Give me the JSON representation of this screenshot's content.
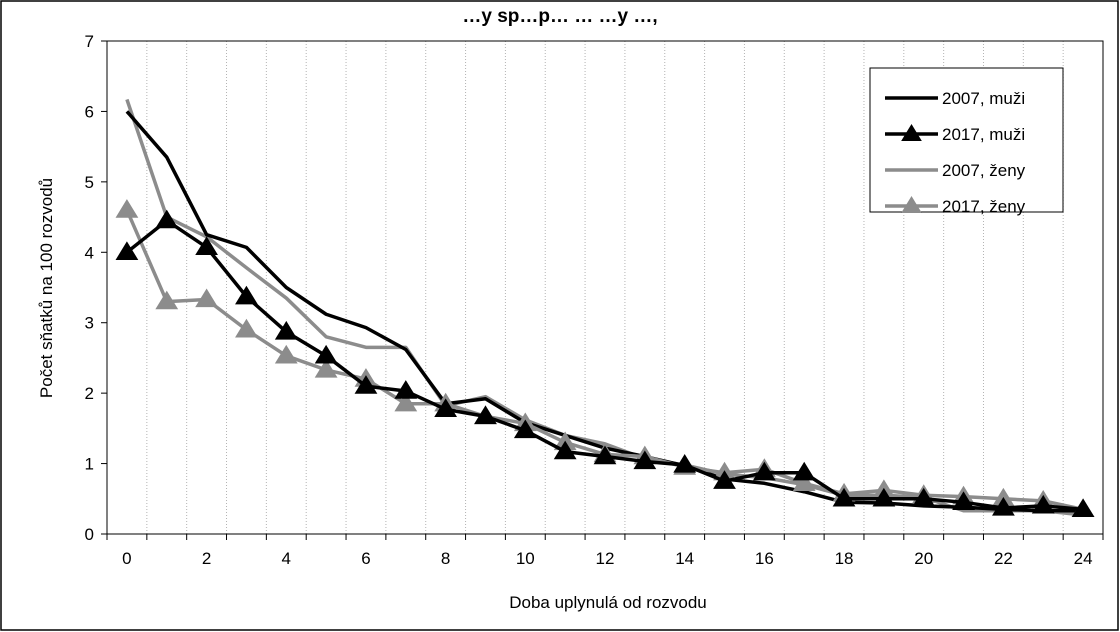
{
  "chart_data": {
    "type": "line",
    "title": "…y sp…p… … …y …,",
    "xlabel": "Doba uplynulá od rozvodu",
    "ylabel": "Počet sňatků na 100 rozvodů",
    "xlim": [
      0,
      24
    ],
    "ylim": [
      0,
      7
    ],
    "x_ticks": [
      "0",
      "2",
      "4",
      "6",
      "8",
      "10",
      "12",
      "14",
      "16",
      "18",
      "20",
      "22",
      "24"
    ],
    "y_ticks": [
      "0",
      "1",
      "2",
      "3",
      "4",
      "5",
      "6",
      "7"
    ],
    "grid": "vertical dotted",
    "legend_position": "top-right",
    "x": [
      0,
      1,
      2,
      3,
      4,
      5,
      6,
      7,
      8,
      9,
      10,
      11,
      12,
      13,
      14,
      15,
      16,
      17,
      18,
      19,
      20,
      21,
      22,
      23,
      24
    ],
    "series": [
      {
        "name": "2007, muži",
        "color": "#000000",
        "marker": "none",
        "values": [
          6.0,
          5.35,
          4.25,
          4.07,
          3.5,
          3.12,
          2.93,
          2.62,
          1.85,
          1.92,
          1.58,
          1.4,
          1.22,
          1.1,
          0.97,
          0.78,
          0.72,
          0.6,
          0.45,
          0.44,
          0.4,
          0.38,
          0.35,
          0.33,
          0.33
        ]
      },
      {
        "name": "2017, muži",
        "color": "#000000",
        "marker": "triangle",
        "values": [
          4.0,
          4.45,
          4.07,
          3.37,
          2.87,
          2.53,
          2.1,
          2.03,
          1.77,
          1.67,
          1.47,
          1.17,
          1.1,
          1.03,
          0.98,
          0.75,
          0.87,
          0.87,
          0.5,
          0.5,
          0.5,
          0.45,
          0.37,
          0.4,
          0.35
        ]
      },
      {
        "name": "2007, ženy",
        "color": "#8c8c8c",
        "marker": "none",
        "values": [
          6.17,
          4.5,
          4.22,
          3.78,
          3.35,
          2.8,
          2.65,
          2.65,
          1.82,
          1.95,
          1.62,
          1.4,
          1.28,
          1.07,
          0.98,
          0.85,
          0.8,
          0.7,
          0.55,
          0.55,
          0.52,
          0.33,
          0.33,
          0.33,
          0.27
        ]
      },
      {
        "name": "2017, ženy",
        "color": "#8c8c8c",
        "marker": "triangle",
        "values": [
          4.6,
          3.3,
          3.33,
          2.9,
          2.53,
          2.33,
          2.2,
          1.85,
          1.85,
          1.67,
          1.57,
          1.3,
          1.13,
          1.1,
          0.95,
          0.87,
          0.92,
          0.72,
          0.57,
          0.62,
          0.55,
          0.53,
          0.5,
          0.47,
          0.35
        ]
      }
    ]
  }
}
